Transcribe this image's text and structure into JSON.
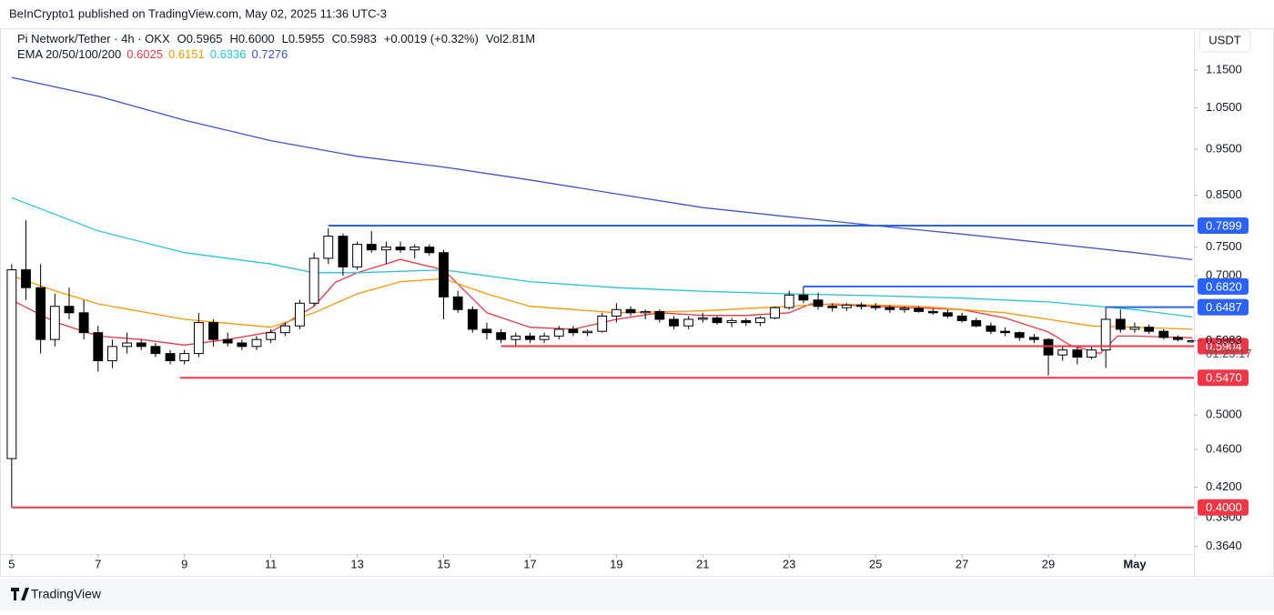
{
  "header": {
    "published": "BeInCrypto1 published on TradingView.com, May 02, 2025 11:36 UTC-3",
    "symbol": "Pi Network/Tether · 4h · OKX",
    "stats": [
      "O0.5965",
      "H0.6000",
      "L0.5955",
      "C0.5983",
      "+0.0019 (+0.32%)",
      "Vol2.81M"
    ],
    "currency": "USDT"
  },
  "footer": {
    "brand": "TradingView"
  },
  "chart_data": {
    "type": "candlestick",
    "log_scale": true,
    "grid": false,
    "up_color": "#ffffff",
    "down_color": "#000000",
    "wick_color": "#000000",
    "xlim": [
      4.94,
      32.37
    ],
    "xticks": [
      5,
      7,
      9,
      11,
      13,
      15,
      17,
      19,
      21,
      23,
      25,
      27,
      29,
      {
        "value": 31,
        "label": "May"
      }
    ],
    "ylim": [
      0.339,
      1.267
    ],
    "yticks": [
      {
        "value": 1.15,
        "label": "1.1500"
      },
      {
        "value": 1.05,
        "label": "1.0500"
      },
      {
        "value": 0.95,
        "label": "0.9500"
      },
      {
        "value": 0.85,
        "label": "0.8500"
      },
      {
        "value": 0.75,
        "label": "0.7500"
      },
      {
        "value": 0.7,
        "label": "0.7000"
      },
      {
        "value": 0.5,
        "label": "0.5000"
      },
      {
        "value": 0.46,
        "label": "0.4600"
      },
      {
        "value": 0.42,
        "label": "0.4200"
      },
      {
        "value": 0.39,
        "label": "0.3900"
      },
      {
        "value": 0.364,
        "label": "0.3640"
      }
    ],
    "candles": [
      {
        "x": 5.0,
        "open": 0.45,
        "high": 0.72,
        "low": 0.4,
        "close": 0.71
      },
      {
        "x": 5.33,
        "open": 0.71,
        "high": 0.8,
        "low": 0.66,
        "close": 0.68
      },
      {
        "x": 5.67,
        "open": 0.68,
        "high": 0.72,
        "low": 0.58,
        "close": 0.6
      },
      {
        "x": 6.0,
        "open": 0.6,
        "high": 0.67,
        "low": 0.59,
        "close": 0.65
      },
      {
        "x": 6.33,
        "open": 0.65,
        "high": 0.68,
        "low": 0.63,
        "close": 0.64
      },
      {
        "x": 6.67,
        "open": 0.64,
        "high": 0.66,
        "low": 0.6,
        "close": 0.61
      },
      {
        "x": 7.0,
        "open": 0.61,
        "high": 0.62,
        "low": 0.555,
        "close": 0.57
      },
      {
        "x": 7.33,
        "open": 0.57,
        "high": 0.6,
        "low": 0.56,
        "close": 0.59
      },
      {
        "x": 7.67,
        "open": 0.59,
        "high": 0.61,
        "low": 0.58,
        "close": 0.595
      },
      {
        "x": 8.0,
        "open": 0.595,
        "high": 0.6,
        "low": 0.585,
        "close": 0.59
      },
      {
        "x": 8.33,
        "open": 0.59,
        "high": 0.595,
        "low": 0.575,
        "close": 0.58
      },
      {
        "x": 8.67,
        "open": 0.58,
        "high": 0.585,
        "low": 0.565,
        "close": 0.57
      },
      {
        "x": 9.0,
        "open": 0.57,
        "high": 0.585,
        "low": 0.565,
        "close": 0.58
      },
      {
        "x": 9.33,
        "open": 0.58,
        "high": 0.64,
        "low": 0.575,
        "close": 0.625
      },
      {
        "x": 9.67,
        "open": 0.625,
        "high": 0.63,
        "low": 0.59,
        "close": 0.6
      },
      {
        "x": 10.0,
        "open": 0.6,
        "high": 0.61,
        "low": 0.59,
        "close": 0.595
      },
      {
        "x": 10.33,
        "open": 0.595,
        "high": 0.6,
        "low": 0.585,
        "close": 0.59
      },
      {
        "x": 10.67,
        "open": 0.59,
        "high": 0.605,
        "low": 0.585,
        "close": 0.6
      },
      {
        "x": 11.0,
        "open": 0.6,
        "high": 0.615,
        "low": 0.595,
        "close": 0.61
      },
      {
        "x": 11.33,
        "open": 0.61,
        "high": 0.625,
        "low": 0.605,
        "close": 0.62
      },
      {
        "x": 11.67,
        "open": 0.62,
        "high": 0.66,
        "low": 0.615,
        "close": 0.655
      },
      {
        "x": 12.0,
        "open": 0.655,
        "high": 0.74,
        "low": 0.65,
        "close": 0.73
      },
      {
        "x": 12.33,
        "open": 0.73,
        "high": 0.785,
        "low": 0.72,
        "close": 0.77
      },
      {
        "x": 12.67,
        "open": 0.77,
        "high": 0.775,
        "low": 0.7,
        "close": 0.715
      },
      {
        "x": 13.0,
        "open": 0.715,
        "high": 0.76,
        "low": 0.71,
        "close": 0.755
      },
      {
        "x": 13.33,
        "open": 0.755,
        "high": 0.78,
        "low": 0.74,
        "close": 0.745
      },
      {
        "x": 13.67,
        "open": 0.745,
        "high": 0.76,
        "low": 0.72,
        "close": 0.75
      },
      {
        "x": 14.0,
        "open": 0.75,
        "high": 0.76,
        "low": 0.74,
        "close": 0.745
      },
      {
        "x": 14.33,
        "open": 0.745,
        "high": 0.755,
        "low": 0.73,
        "close": 0.75
      },
      {
        "x": 14.67,
        "open": 0.75,
        "high": 0.755,
        "low": 0.735,
        "close": 0.74
      },
      {
        "x": 15.0,
        "open": 0.74,
        "high": 0.745,
        "low": 0.63,
        "close": 0.665
      },
      {
        "x": 15.33,
        "open": 0.665,
        "high": 0.675,
        "low": 0.64,
        "close": 0.645
      },
      {
        "x": 15.67,
        "open": 0.645,
        "high": 0.65,
        "low": 0.61,
        "close": 0.615
      },
      {
        "x": 16.0,
        "open": 0.615,
        "high": 0.625,
        "low": 0.6,
        "close": 0.61
      },
      {
        "x": 16.33,
        "open": 0.61,
        "high": 0.615,
        "low": 0.595,
        "close": 0.6
      },
      {
        "x": 16.67,
        "open": 0.6,
        "high": 0.61,
        "low": 0.59,
        "close": 0.605
      },
      {
        "x": 17.0,
        "open": 0.605,
        "high": 0.61,
        "low": 0.595,
        "close": 0.6
      },
      {
        "x": 17.33,
        "open": 0.6,
        "high": 0.61,
        "low": 0.595,
        "close": 0.605
      },
      {
        "x": 17.67,
        "open": 0.605,
        "high": 0.62,
        "low": 0.6,
        "close": 0.615
      },
      {
        "x": 18.0,
        "open": 0.615,
        "high": 0.62,
        "low": 0.605,
        "close": 0.61
      },
      {
        "x": 18.33,
        "open": 0.61,
        "high": 0.615,
        "low": 0.605,
        "close": 0.612
      },
      {
        "x": 18.67,
        "open": 0.612,
        "high": 0.64,
        "low": 0.61,
        "close": 0.635
      },
      {
        "x": 19.0,
        "open": 0.635,
        "high": 0.655,
        "low": 0.625,
        "close": 0.645
      },
      {
        "x": 19.33,
        "open": 0.645,
        "high": 0.65,
        "low": 0.635,
        "close": 0.64
      },
      {
        "x": 19.67,
        "open": 0.64,
        "high": 0.645,
        "low": 0.63,
        "close": 0.642
      },
      {
        "x": 20.0,
        "open": 0.642,
        "high": 0.645,
        "low": 0.625,
        "close": 0.63
      },
      {
        "x": 20.33,
        "open": 0.63,
        "high": 0.635,
        "low": 0.615,
        "close": 0.62
      },
      {
        "x": 20.67,
        "open": 0.62,
        "high": 0.635,
        "low": 0.615,
        "close": 0.63
      },
      {
        "x": 21.0,
        "open": 0.63,
        "high": 0.64,
        "low": 0.625,
        "close": 0.632
      },
      {
        "x": 21.33,
        "open": 0.632,
        "high": 0.635,
        "low": 0.622,
        "close": 0.625
      },
      {
        "x": 21.67,
        "open": 0.625,
        "high": 0.632,
        "low": 0.618,
        "close": 0.628
      },
      {
        "x": 22.0,
        "open": 0.628,
        "high": 0.632,
        "low": 0.62,
        "close": 0.625
      },
      {
        "x": 22.33,
        "open": 0.625,
        "high": 0.635,
        "low": 0.62,
        "close": 0.632
      },
      {
        "x": 22.67,
        "open": 0.632,
        "high": 0.65,
        "low": 0.63,
        "close": 0.648
      },
      {
        "x": 23.0,
        "open": 0.648,
        "high": 0.675,
        "low": 0.645,
        "close": 0.668
      },
      {
        "x": 23.33,
        "open": 0.668,
        "high": 0.682,
        "low": 0.655,
        "close": 0.66
      },
      {
        "x": 23.67,
        "open": 0.66,
        "high": 0.672,
        "low": 0.645,
        "close": 0.65
      },
      {
        "x": 24.0,
        "open": 0.65,
        "high": 0.655,
        "low": 0.642,
        "close": 0.648
      },
      {
        "x": 24.33,
        "open": 0.648,
        "high": 0.655,
        "low": 0.643,
        "close": 0.652
      },
      {
        "x": 24.67,
        "open": 0.652,
        "high": 0.656,
        "low": 0.645,
        "close": 0.65
      },
      {
        "x": 25.0,
        "open": 0.65,
        "high": 0.655,
        "low": 0.644,
        "close": 0.648
      },
      {
        "x": 25.33,
        "open": 0.648,
        "high": 0.652,
        "low": 0.64,
        "close": 0.645
      },
      {
        "x": 25.67,
        "open": 0.645,
        "high": 0.65,
        "low": 0.64,
        "close": 0.647
      },
      {
        "x": 26.0,
        "open": 0.647,
        "high": 0.65,
        "low": 0.64,
        "close": 0.642
      },
      {
        "x": 26.33,
        "open": 0.642,
        "high": 0.646,
        "low": 0.637,
        "close": 0.64
      },
      {
        "x": 26.67,
        "open": 0.64,
        "high": 0.645,
        "low": 0.632,
        "close": 0.635
      },
      {
        "x": 27.0,
        "open": 0.635,
        "high": 0.64,
        "low": 0.625,
        "close": 0.628
      },
      {
        "x": 27.33,
        "open": 0.628,
        "high": 0.632,
        "low": 0.618,
        "close": 0.62
      },
      {
        "x": 27.67,
        "open": 0.62,
        "high": 0.625,
        "low": 0.608,
        "close": 0.612
      },
      {
        "x": 28.0,
        "open": 0.612,
        "high": 0.618,
        "low": 0.605,
        "close": 0.61
      },
      {
        "x": 28.33,
        "open": 0.61,
        "high": 0.612,
        "low": 0.598,
        "close": 0.603
      },
      {
        "x": 28.67,
        "open": 0.603,
        "high": 0.608,
        "low": 0.595,
        "close": 0.6
      },
      {
        "x": 29.0,
        "open": 0.6,
        "high": 0.602,
        "low": 0.55,
        "close": 0.578
      },
      {
        "x": 29.33,
        "open": 0.578,
        "high": 0.59,
        "low": 0.57,
        "close": 0.585
      },
      {
        "x": 29.67,
        "open": 0.585,
        "high": 0.59,
        "low": 0.565,
        "close": 0.575
      },
      {
        "x": 30.0,
        "open": 0.575,
        "high": 0.59,
        "low": 0.572,
        "close": 0.585
      },
      {
        "x": 30.33,
        "open": 0.585,
        "high": 0.6487,
        "low": 0.56,
        "close": 0.63
      },
      {
        "x": 30.67,
        "open": 0.63,
        "high": 0.645,
        "low": 0.61,
        "close": 0.615
      },
      {
        "x": 31.0,
        "open": 0.615,
        "high": 0.625,
        "low": 0.61,
        "close": 0.618
      },
      {
        "x": 31.33,
        "open": 0.618,
        "high": 0.622,
        "low": 0.608,
        "close": 0.612
      },
      {
        "x": 31.67,
        "open": 0.612,
        "high": 0.615,
        "low": 0.6,
        "close": 0.603
      },
      {
        "x": 32.0,
        "open": 0.603,
        "high": 0.606,
        "low": 0.597,
        "close": 0.6
      },
      {
        "x": 32.33,
        "open": 0.5965,
        "high": 0.6,
        "low": 0.5955,
        "close": 0.5983
      }
    ],
    "indicator": "EMA 20/50/100/200",
    "series": [
      {
        "color": "#f23645",
        "last": 0.6025,
        "x": [
          5,
          6,
          7,
          8,
          9,
          10,
          11,
          12,
          12.5,
          13,
          14,
          15,
          15.5,
          16,
          17,
          18,
          19,
          20,
          21,
          22,
          23,
          23.5,
          25,
          27,
          28,
          29,
          29.5,
          30.2,
          30.6,
          31,
          32.33
        ],
        "values": [
          0.66,
          0.626,
          0.605,
          0.6,
          0.592,
          0.6,
          0.611,
          0.65,
          0.689,
          0.705,
          0.728,
          0.71,
          0.674,
          0.64,
          0.618,
          0.615,
          0.63,
          0.64,
          0.636,
          0.636,
          0.64,
          0.654,
          0.65,
          0.645,
          0.632,
          0.611,
          0.592,
          0.58,
          0.605,
          0.605,
          0.6025
        ]
      },
      {
        "color": "#ff9800",
        "last": 0.6151,
        "x": [
          5,
          6,
          7,
          9,
          11,
          12,
          13,
          14,
          15,
          16,
          17,
          19,
          21,
          23,
          24,
          26,
          28,
          29,
          30,
          31,
          32.33
        ],
        "values": [
          0.7,
          0.675,
          0.654,
          0.63,
          0.618,
          0.64,
          0.67,
          0.69,
          0.695,
          0.67,
          0.65,
          0.64,
          0.643,
          0.65,
          0.654,
          0.65,
          0.64,
          0.63,
          0.62,
          0.618,
          0.6151
        ]
      },
      {
        "color": "#26c6da",
        "last": 0.6336,
        "x": [
          5,
          7,
          9,
          11,
          12,
          13,
          15,
          17,
          19,
          21,
          23,
          25,
          27,
          29,
          31,
          32.33
        ],
        "values": [
          0.845,
          0.78,
          0.74,
          0.72,
          0.705,
          0.705,
          0.71,
          0.69,
          0.68,
          0.674,
          0.67,
          0.667,
          0.663,
          0.657,
          0.645,
          0.6336
        ]
      },
      {
        "color": "#3f51d5",
        "last": 0.7276,
        "x": [
          5,
          7,
          9,
          11,
          13,
          15,
          17,
          19,
          21,
          23,
          25,
          27,
          29,
          31,
          32.33
        ],
        "values": [
          1.13,
          1.08,
          1.019,
          0.97,
          0.934,
          0.91,
          0.882,
          0.853,
          0.825,
          0.807,
          0.79,
          0.774,
          0.757,
          0.74,
          0.7276
        ]
      }
    ],
    "levels": [
      {
        "value": 0.7899,
        "label": "0.7899",
        "from": 12.33,
        "color": "#2962ff"
      },
      {
        "value": 0.682,
        "label": "0.6820",
        "from": 23.33,
        "color": "#2962ff"
      },
      {
        "value": 0.6487,
        "label": "0.6487",
        "from": 30.33,
        "color": "#2962ff"
      },
      {
        "value": 0.5904,
        "label": "0.5904",
        "from": 16.33,
        "color": "#f23645"
      },
      {
        "value": 0.547,
        "label": "0.5470",
        "from": 8.9,
        "color": "#f23645"
      },
      {
        "value": 0.4,
        "label": "0.4000",
        "from": 5.0,
        "color": "#f23645"
      }
    ],
    "last_price": 0.5983,
    "countdown": "01:23:17"
  }
}
